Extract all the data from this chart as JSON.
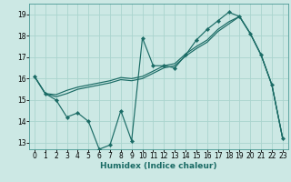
{
  "xlabel": "Humidex (Indice chaleur)",
  "bg_color": "#cce8e4",
  "grid_color": "#aad4ce",
  "line_color": "#1a6b65",
  "spine_color": "#4a9a94",
  "xlim": [
    -0.5,
    23.5
  ],
  "ylim": [
    12.7,
    19.5
  ],
  "xticks": [
    0,
    1,
    2,
    3,
    4,
    5,
    6,
    7,
    8,
    9,
    10,
    11,
    12,
    13,
    14,
    15,
    16,
    17,
    18,
    19,
    20,
    21,
    22,
    23
  ],
  "yticks": [
    13,
    14,
    15,
    16,
    17,
    18,
    19
  ],
  "tick_fontsize": 5.5,
  "xlabel_fontsize": 6.5,
  "line1_x": [
    0,
    1,
    2,
    3,
    4,
    5,
    6,
    7,
    8,
    9,
    10,
    11,
    12,
    13,
    14,
    15,
    16,
    17,
    18,
    19,
    20,
    21,
    22,
    23
  ],
  "line1_y": [
    16.1,
    15.3,
    15.0,
    14.2,
    14.4,
    14.0,
    12.7,
    12.9,
    14.5,
    13.1,
    17.9,
    16.6,
    16.6,
    16.5,
    17.1,
    17.8,
    18.3,
    18.7,
    19.1,
    18.9,
    18.1,
    17.1,
    15.7,
    13.2
  ],
  "line2_x": [
    0,
    1,
    2,
    3,
    4,
    5,
    6,
    7,
    8,
    9,
    10,
    11,
    12,
    13,
    14,
    15,
    16,
    17,
    18,
    19,
    20,
    21,
    22,
    23
  ],
  "line2_y": [
    16.1,
    15.3,
    15.25,
    15.45,
    15.6,
    15.7,
    15.8,
    15.9,
    16.05,
    16.0,
    16.1,
    16.35,
    16.6,
    16.7,
    17.15,
    17.5,
    17.8,
    18.3,
    18.65,
    18.9,
    18.1,
    17.1,
    15.7,
    13.2
  ],
  "line3_x": [
    0,
    1,
    2,
    3,
    4,
    5,
    6,
    7,
    8,
    9,
    10,
    11,
    12,
    13,
    14,
    15,
    16,
    17,
    18,
    19,
    20,
    21,
    22,
    23
  ],
  "line3_y": [
    16.1,
    15.3,
    15.15,
    15.3,
    15.5,
    15.6,
    15.7,
    15.8,
    15.95,
    15.9,
    16.0,
    16.25,
    16.5,
    16.6,
    17.05,
    17.4,
    17.7,
    18.2,
    18.55,
    18.9,
    18.1,
    17.1,
    15.7,
    13.2
  ],
  "markersize": 2.2,
  "linewidth": 0.85
}
